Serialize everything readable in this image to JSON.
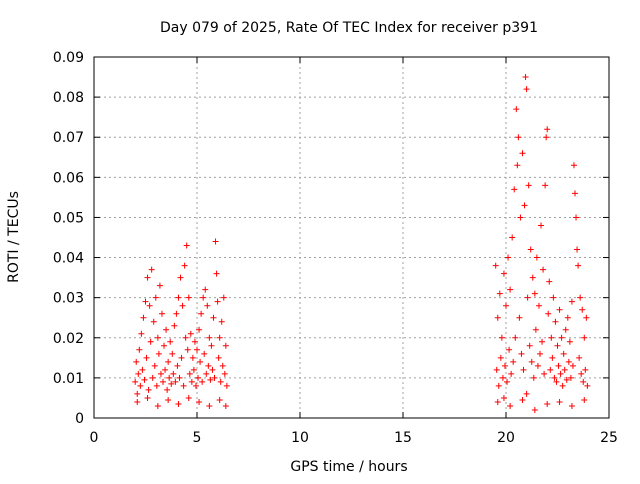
{
  "chart_data": {
    "type": "scatter",
    "title": "Day 079 of 2025, Rate Of TEC Index for receiver p391",
    "xlabel": "GPS time / hours",
    "ylabel": "ROTI / TECUs",
    "xlim": [
      0,
      25
    ],
    "ylim": [
      0,
      0.09
    ],
    "xticks": [
      0,
      5,
      10,
      15,
      20,
      25
    ],
    "xtick_labels": [
      "0",
      "5",
      "10",
      "15",
      "20",
      "25"
    ],
    "yticks": [
      0,
      0.01,
      0.02,
      0.03,
      0.04,
      0.05,
      0.06,
      0.07,
      0.08,
      0.09
    ],
    "ytick_labels": [
      "0",
      "0.01",
      "0.02",
      "0.03",
      "0.04",
      "0.05",
      "0.06",
      "0.07",
      "0.08",
      "0.09"
    ],
    "grid": true,
    "marker": "plus",
    "color": "#ff0000",
    "series": [
      {
        "name": "ROTI",
        "points": [
          [
            2.0,
            0.009
          ],
          [
            2.05,
            0.014
          ],
          [
            2.1,
            0.006
          ],
          [
            2.15,
            0.011
          ],
          [
            2.2,
            0.017
          ],
          [
            2.25,
            0.008
          ],
          [
            2.3,
            0.021
          ],
          [
            2.35,
            0.012
          ],
          [
            2.4,
            0.025
          ],
          [
            2.45,
            0.0095
          ],
          [
            2.5,
            0.029
          ],
          [
            2.55,
            0.015
          ],
          [
            2.6,
            0.035
          ],
          [
            2.65,
            0.007
          ],
          [
            2.7,
            0.028
          ],
          [
            2.75,
            0.019
          ],
          [
            2.8,
            0.037
          ],
          [
            2.85,
            0.01
          ],
          [
            2.9,
            0.024
          ],
          [
            2.95,
            0.013
          ],
          [
            3.0,
            0.03
          ],
          [
            3.05,
            0.008
          ],
          [
            3.1,
            0.02
          ],
          [
            3.15,
            0.016
          ],
          [
            3.2,
            0.033
          ],
          [
            3.25,
            0.011
          ],
          [
            3.3,
            0.026
          ],
          [
            3.35,
            0.009
          ],
          [
            3.4,
            0.018
          ],
          [
            3.45,
            0.012
          ],
          [
            3.5,
            0.022
          ],
          [
            3.55,
            0.007
          ],
          [
            3.6,
            0.014
          ],
          [
            3.65,
            0.01
          ],
          [
            3.7,
            0.019
          ],
          [
            3.75,
            0.0085
          ],
          [
            3.8,
            0.016
          ],
          [
            3.85,
            0.011
          ],
          [
            3.9,
            0.023
          ],
          [
            3.95,
            0.009
          ],
          [
            4.0,
            0.026
          ],
          [
            4.05,
            0.013
          ],
          [
            4.1,
            0.03
          ],
          [
            4.15,
            0.01
          ],
          [
            4.2,
            0.035
          ],
          [
            4.25,
            0.015
          ],
          [
            4.3,
            0.028
          ],
          [
            4.35,
            0.008
          ],
          [
            4.4,
            0.038
          ],
          [
            4.45,
            0.02
          ],
          [
            4.5,
            0.043
          ],
          [
            4.55,
            0.017
          ],
          [
            4.6,
            0.03
          ],
          [
            4.65,
            0.011
          ],
          [
            4.7,
            0.021
          ],
          [
            4.75,
            0.009
          ],
          [
            4.8,
            0.015
          ],
          [
            4.85,
            0.012
          ],
          [
            4.9,
            0.019
          ],
          [
            4.95,
            0.008
          ],
          [
            5.0,
            0.017
          ],
          [
            5.05,
            0.01
          ],
          [
            5.1,
            0.022
          ],
          [
            5.15,
            0.014
          ],
          [
            5.2,
            0.026
          ],
          [
            5.25,
            0.009
          ],
          [
            5.3,
            0.03
          ],
          [
            5.35,
            0.016
          ],
          [
            5.4,
            0.032
          ],
          [
            5.45,
            0.011
          ],
          [
            5.5,
            0.028
          ],
          [
            5.55,
            0.013
          ],
          [
            5.6,
            0.02
          ],
          [
            5.65,
            0.0095
          ],
          [
            5.7,
            0.018
          ],
          [
            5.75,
            0.012
          ],
          [
            5.8,
            0.025
          ],
          [
            5.85,
            0.01
          ],
          [
            5.9,
            0.044
          ],
          [
            5.95,
            0.036
          ],
          [
            6.0,
            0.029
          ],
          [
            6.05,
            0.015
          ],
          [
            6.1,
            0.02
          ],
          [
            6.15,
            0.009
          ],
          [
            6.2,
            0.024
          ],
          [
            6.25,
            0.013
          ],
          [
            6.3,
            0.03
          ],
          [
            6.35,
            0.011
          ],
          [
            6.4,
            0.018
          ],
          [
            6.45,
            0.008
          ],
          [
            2.1,
            0.004
          ],
          [
            2.6,
            0.005
          ],
          [
            3.1,
            0.003
          ],
          [
            3.6,
            0.0045
          ],
          [
            4.1,
            0.0035
          ],
          [
            4.6,
            0.005
          ],
          [
            5.1,
            0.004
          ],
          [
            5.6,
            0.003
          ],
          [
            6.1,
            0.0045
          ],
          [
            6.4,
            0.003
          ],
          [
            19.5,
            0.038
          ],
          [
            19.55,
            0.012
          ],
          [
            19.6,
            0.025
          ],
          [
            19.65,
            0.008
          ],
          [
            19.7,
            0.031
          ],
          [
            19.75,
            0.015
          ],
          [
            19.8,
            0.02
          ],
          [
            19.85,
            0.01
          ],
          [
            19.9,
            0.036
          ],
          [
            19.95,
            0.013
          ],
          [
            20.0,
            0.028
          ],
          [
            20.05,
            0.009
          ],
          [
            20.1,
            0.04
          ],
          [
            20.15,
            0.017
          ],
          [
            20.2,
            0.032
          ],
          [
            20.25,
            0.011
          ],
          [
            20.3,
            0.045
          ],
          [
            20.35,
            0.014
          ],
          [
            20.4,
            0.057
          ],
          [
            20.45,
            0.02
          ],
          [
            20.5,
            0.077
          ],
          [
            20.55,
            0.063
          ],
          [
            20.6,
            0.07
          ],
          [
            20.65,
            0.025
          ],
          [
            20.7,
            0.05
          ],
          [
            20.75,
            0.016
          ],
          [
            20.8,
            0.066
          ],
          [
            20.85,
            0.012
          ],
          [
            20.9,
            0.053
          ],
          [
            20.95,
            0.085
          ],
          [
            21.0,
            0.082
          ],
          [
            21.05,
            0.03
          ],
          [
            21.1,
            0.058
          ],
          [
            21.15,
            0.018
          ],
          [
            21.2,
            0.042
          ],
          [
            21.25,
            0.014
          ],
          [
            21.3,
            0.035
          ],
          [
            21.35,
            0.01
          ],
          [
            21.4,
            0.031
          ],
          [
            21.45,
            0.022
          ],
          [
            21.5,
            0.04
          ],
          [
            21.55,
            0.013
          ],
          [
            21.6,
            0.028
          ],
          [
            21.65,
            0.016
          ],
          [
            21.7,
            0.048
          ],
          [
            21.75,
            0.019
          ],
          [
            21.8,
            0.037
          ],
          [
            21.85,
            0.011
          ],
          [
            21.9,
            0.058
          ],
          [
            21.95,
            0.07
          ],
          [
            22.0,
            0.072
          ],
          [
            22.05,
            0.026
          ],
          [
            22.1,
            0.034
          ],
          [
            22.15,
            0.012
          ],
          [
            22.2,
            0.02
          ],
          [
            22.25,
            0.015
          ],
          [
            22.3,
            0.03
          ],
          [
            22.35,
            0.01
          ],
          [
            22.4,
            0.024
          ],
          [
            22.45,
            0.009
          ],
          [
            22.5,
            0.018
          ],
          [
            22.55,
            0.013
          ],
          [
            22.6,
            0.027
          ],
          [
            22.65,
            0.011
          ],
          [
            22.7,
            0.02
          ],
          [
            22.75,
            0.008
          ],
          [
            22.8,
            0.016
          ],
          [
            22.85,
            0.012
          ],
          [
            22.9,
            0.022
          ],
          [
            22.95,
            0.0095
          ],
          [
            23.0,
            0.025
          ],
          [
            23.05,
            0.014
          ],
          [
            23.1,
            0.019
          ],
          [
            23.15,
            0.01
          ],
          [
            23.2,
            0.029
          ],
          [
            23.25,
            0.013
          ],
          [
            23.3,
            0.063
          ],
          [
            23.35,
            0.056
          ],
          [
            23.4,
            0.05
          ],
          [
            23.45,
            0.042
          ],
          [
            23.5,
            0.038
          ],
          [
            23.55,
            0.015
          ],
          [
            23.6,
            0.03
          ],
          [
            23.65,
            0.011
          ],
          [
            23.7,
            0.027
          ],
          [
            23.75,
            0.009
          ],
          [
            23.8,
            0.02
          ],
          [
            23.85,
            0.012
          ],
          [
            23.9,
            0.025
          ],
          [
            23.95,
            0.008
          ],
          [
            19.6,
            0.004
          ],
          [
            20.2,
            0.003
          ],
          [
            20.8,
            0.0045
          ],
          [
            21.4,
            0.002
          ],
          [
            22.0,
            0.0035
          ],
          [
            22.6,
            0.004
          ],
          [
            23.2,
            0.003
          ],
          [
            23.8,
            0.0045
          ],
          [
            21.0,
            0.006
          ],
          [
            19.9,
            0.005
          ]
        ]
      }
    ]
  }
}
